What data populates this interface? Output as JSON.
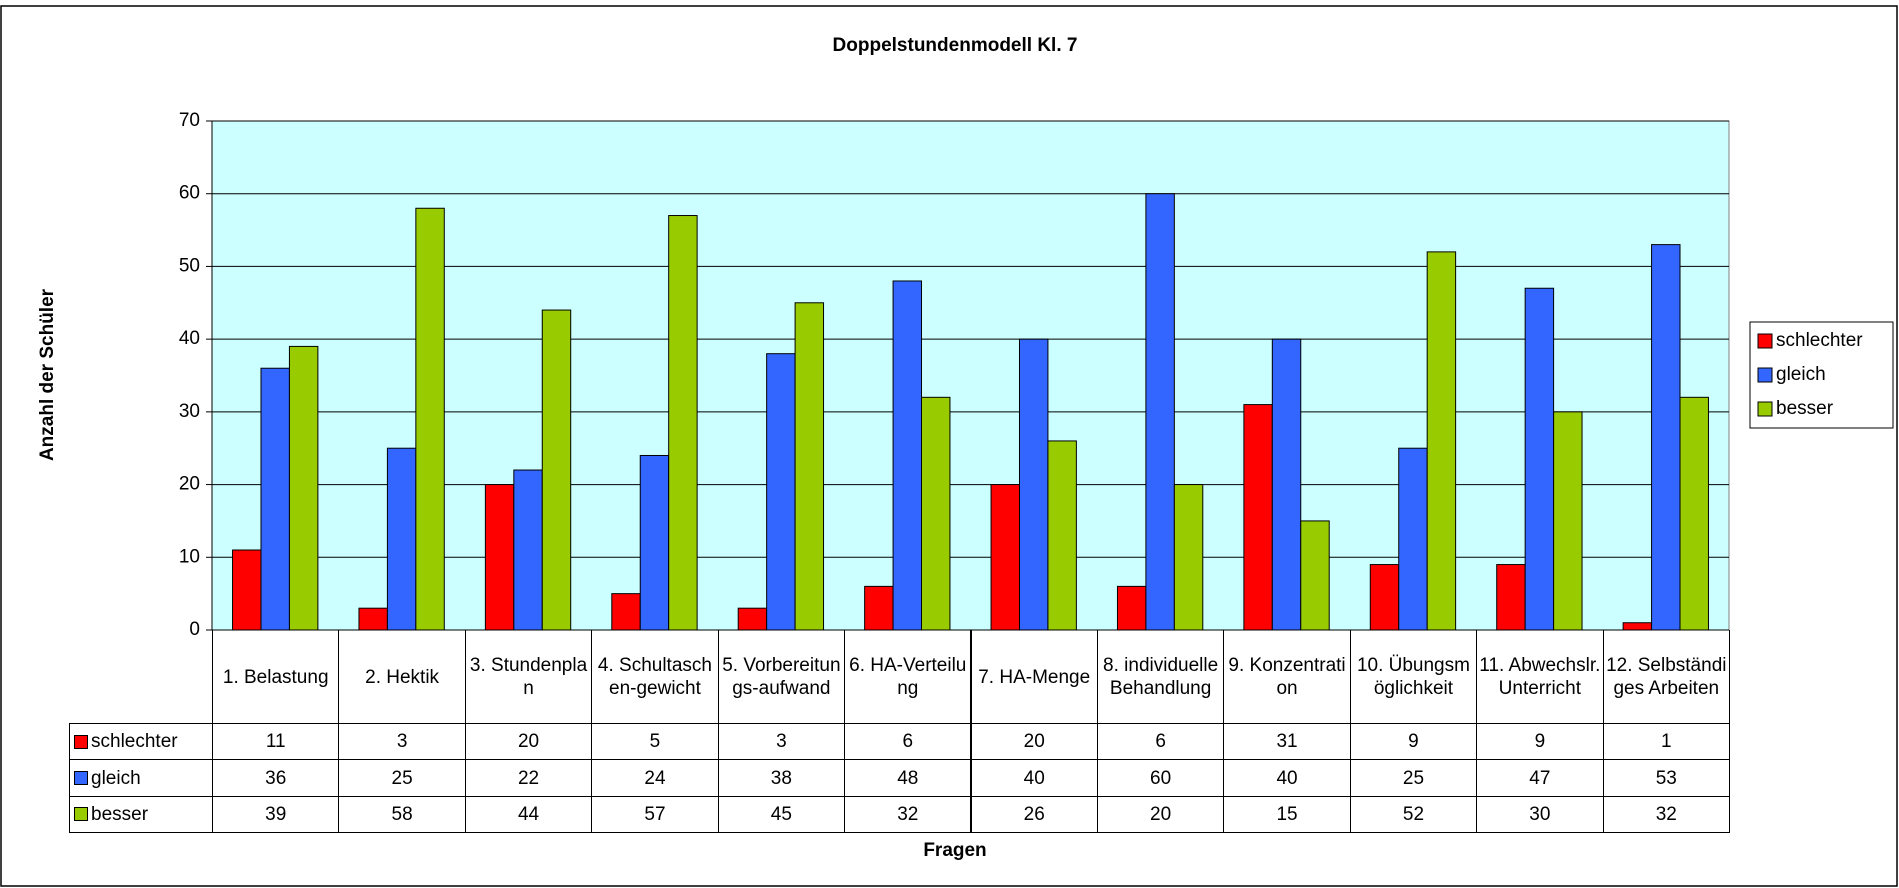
{
  "chart_data": {
    "type": "bar",
    "title": "Doppelstundenmodell Kl. 7",
    "x_label": "Fragen",
    "y_label": "Anzahl der Schüler",
    "categories": [
      "1. Belastung",
      "2. Hektik",
      "3. Stundenplan",
      "4. Schultaschen-gewicht",
      "5. Vorbereitungs-aufwand",
      "6. HA-Verteilung",
      "7. HA-Menge",
      "8. individuelle Behandlung",
      "9. Konzentration",
      "10. Übungsmöglichkeit",
      "11. Abwechslr. Unterricht",
      "12. Selbständiges Arbeiten"
    ],
    "series": [
      {
        "name": "schlechter",
        "color": "#ff0000",
        "values": [
          11,
          3,
          20,
          5,
          3,
          6,
          20,
          6,
          31,
          9,
          9,
          1
        ]
      },
      {
        "name": "gleich",
        "color": "#3366ff",
        "values": [
          36,
          25,
          22,
          24,
          38,
          48,
          40,
          60,
          40,
          25,
          47,
          53
        ]
      },
      {
        "name": "besser",
        "color": "#99cc00",
        "values": [
          39,
          58,
          44,
          57,
          45,
          32,
          26,
          20,
          15,
          52,
          30,
          32
        ]
      }
    ],
    "ylim": [
      0,
      70
    ],
    "yticks": [
      0,
      10,
      20,
      30,
      40,
      50,
      60,
      70
    ],
    "grid": true,
    "legend": "right",
    "plot_background": "#ccffff",
    "data_table": true
  }
}
